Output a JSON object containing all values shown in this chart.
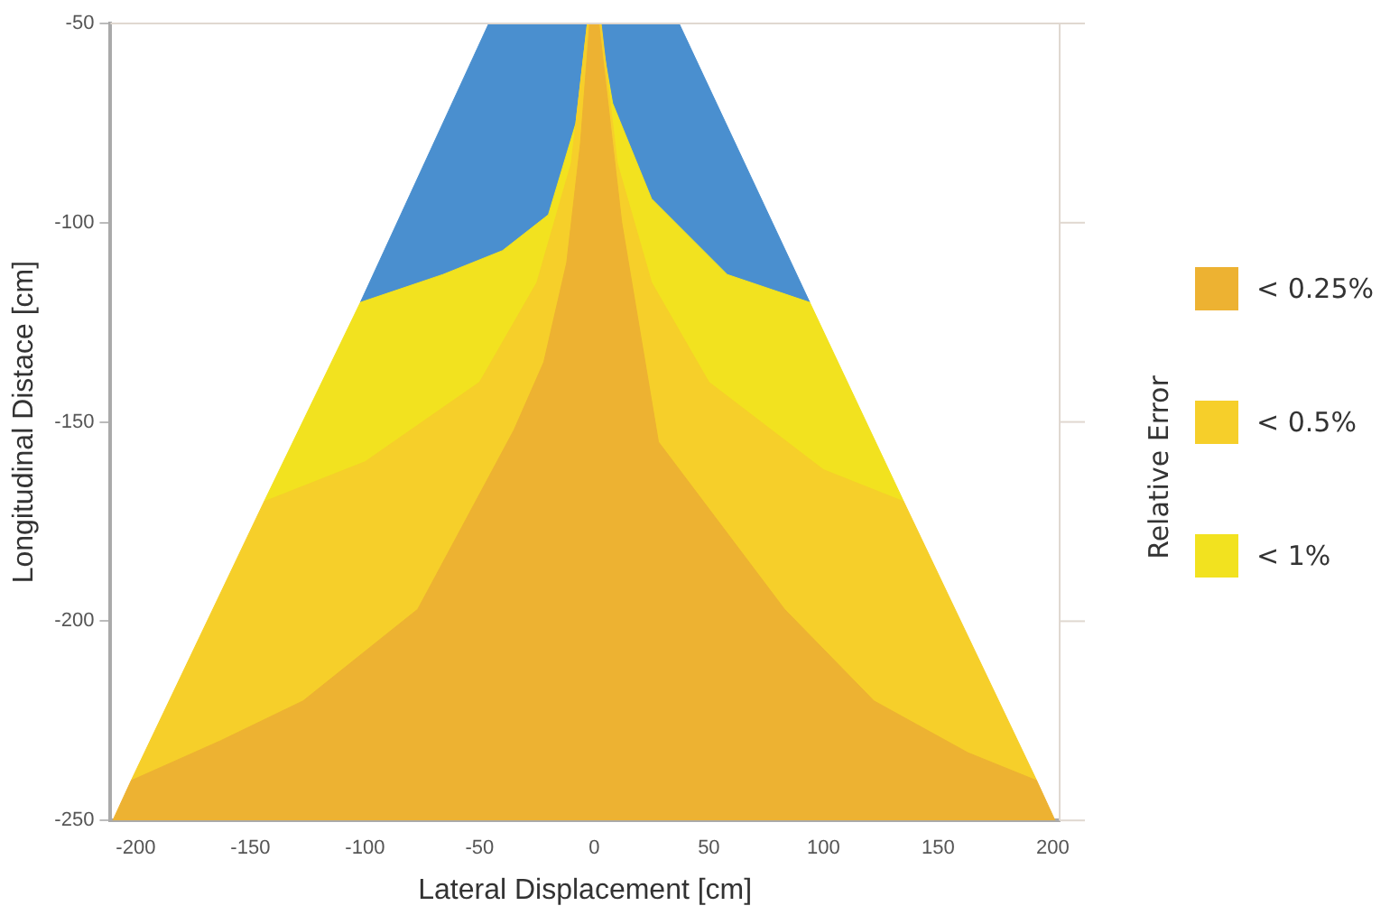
{
  "chart_data": {
    "type": "area",
    "xlabel": "Lateral Displacement [cm]",
    "ylabel": "Longitudinal Distace [cm]",
    "legend_title": "Relative Error",
    "xlim": [
      -211,
      203
    ],
    "xticks": [
      -200,
      -150,
      -100,
      -50,
      0,
      50,
      100,
      150,
      200
    ],
    "ylim": [
      -250,
      -50
    ],
    "yticks": [
      -250,
      -200,
      -150,
      -100,
      -50
    ],
    "grid": false,
    "legend": "right",
    "series": [
      {
        "color": "#4a8fcf",
        "x": [
          -102,
          -46,
          37,
          94
        ],
        "values": [
          -120,
          -50,
          -50,
          -120
        ]
      },
      {
        "name": "< 1%",
        "color": "#f2e21f",
        "x": [
          -144,
          -102,
          -66,
          -40,
          -20,
          -8,
          -3,
          2,
          8,
          25,
          58,
          94,
          135
        ],
        "values": [
          -170,
          -120,
          -113,
          -107,
          -98,
          -75,
          -50,
          -50,
          -70,
          -94,
          -113,
          -120,
          -170
        ]
      },
      {
        "name": "< 0.5%",
        "color": "#f6cf2a",
        "x": [
          -202,
          -144,
          -100,
          -50,
          -25,
          -10,
          -3,
          3,
          10,
          25,
          50,
          100,
          135,
          193
        ],
        "values": [
          -240,
          -170,
          -160,
          -140,
          -115,
          -85,
          -50,
          -50,
          -85,
          -115,
          -140,
          -162,
          -170,
          -240
        ]
      },
      {
        "name": "< 0.25%",
        "color": "#edb232",
        "x": [
          -210,
          -202,
          -163,
          -127,
          -77,
          -35,
          -22,
          -12,
          -6,
          -2,
          2,
          12,
          28,
          83,
          122,
          163,
          193,
          201
        ],
        "values": [
          -250,
          -240,
          -230,
          -220,
          -197,
          -152,
          -135,
          -110,
          -80,
          -50,
          -50,
          -100,
          -155,
          -197,
          -220,
          -233,
          -240,
          -250
        ]
      }
    ]
  }
}
